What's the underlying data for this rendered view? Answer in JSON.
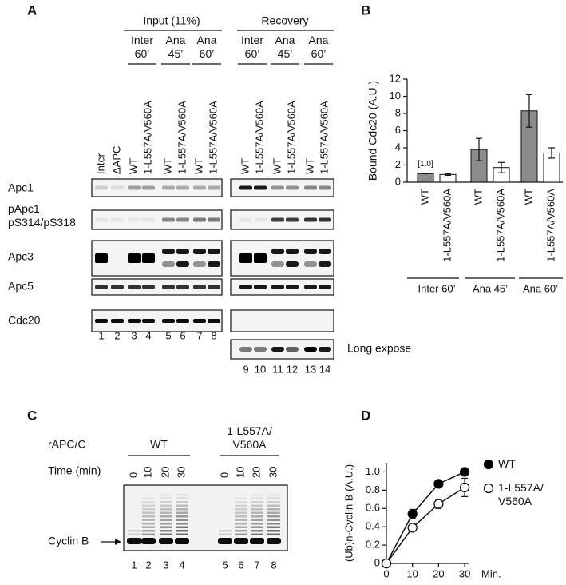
{
  "panel_labels": [
    "A",
    "B",
    "C",
    "D"
  ],
  "figure_a": {
    "group_headers": [
      "Input (11%)",
      "Recovery"
    ],
    "subgroups": [
      "Inter 60’",
      "Ana 45’",
      "Ana 60’",
      "Inter 60’",
      "Ana 45’",
      "Ana 60’"
    ],
    "lanes": [
      "Inter",
      "ΔAPC",
      "WT",
      "1-L557A/V560A",
      "WT",
      "1-L557A/V560A",
      "WT",
      "1-L557A/V560A",
      "WT",
      "1-L557A/V560A",
      "WT",
      "1-L557A/V560A",
      "WT",
      "1-L557A/V560A"
    ],
    "rows": [
      "Apc1",
      "pApc1 pS314/pS318",
      "Apc3",
      "Apc5",
      "Cdc20"
    ],
    "lane_numbers": [
      1,
      2,
      3,
      4,
      5,
      6,
      7,
      8,
      9,
      10,
      11,
      12,
      13,
      14
    ],
    "long_expose": "Long expose"
  },
  "figure_c": {
    "row_label": "rAPC/C",
    "time_label": "Time (min)",
    "groups": [
      "WT",
      "1-L557A/V560A"
    ],
    "times": [
      0,
      10,
      20,
      30
    ],
    "band_label": "Cyclin B",
    "lane_numbers": [
      1,
      2,
      3,
      4,
      5,
      6,
      7,
      8
    ]
  },
  "chart_data": [
    {
      "type": "bar",
      "ylabel": "Bound Cdc20 (A.U.)",
      "categories": [
        "Inter 60’",
        "Ana 45’",
        "Ana 60’"
      ],
      "series": [
        {
          "name": "WT",
          "color": "#8c8c8c",
          "values": [
            1.0,
            3.8,
            8.3
          ],
          "errors": [
            0,
            1.3,
            1.9
          ]
        },
        {
          "name": "1-L557A/V560A",
          "color": "#ffffff",
          "values": [
            0.9,
            1.7,
            3.4
          ],
          "errors": [
            0.1,
            0.6,
            0.6
          ]
        }
      ],
      "annotation": "[1.0]",
      "ylim": [
        0,
        12
      ],
      "yticks": [
        0,
        2,
        4,
        6,
        8,
        10,
        12
      ],
      "grid": false
    },
    {
      "type": "line",
      "ylabel": "(Ub)n-Cyclin B (A.U.)",
      "xlabel": "Min.",
      "x": [
        0,
        10,
        20,
        30
      ],
      "series": [
        {
          "name": "WT",
          "color": "#000000",
          "values": [
            0,
            0.54,
            0.87,
            1.0
          ],
          "errors": [
            0,
            0.05,
            0.03,
            0.04
          ]
        },
        {
          "name": "1-L557A/V560A",
          "color": "#ffffff",
          "values": [
            0,
            0.39,
            0.65,
            0.83
          ],
          "errors": [
            0,
            0.04,
            0.05,
            0.1
          ]
        }
      ],
      "xlim": [
        0,
        31.5
      ],
      "xticks": [
        0,
        10,
        20,
        30
      ],
      "ylim": [
        0,
        1.1
      ],
      "yticks": [
        0,
        0.2,
        0.4,
        0.6,
        0.8,
        {
          "value": 1,
          "label": "1.0"
        }
      ],
      "legend": "right",
      "grid": false
    }
  ]
}
